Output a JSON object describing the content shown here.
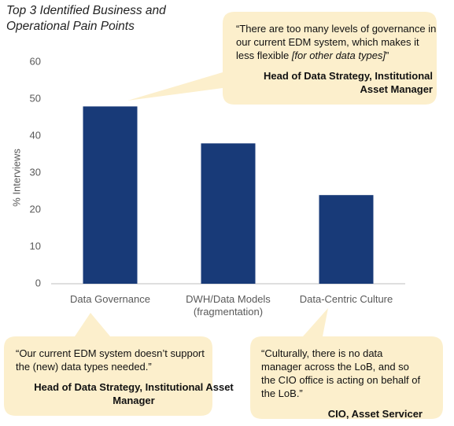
{
  "chart_data": {
    "type": "bar",
    "title": "Top 3 Identified Business and Operational Pain Points",
    "y_label": "% Interviews",
    "categories": [
      "Data Governance",
      "DWH/Data Models (fragmentation)",
      "Data-Centric Culture"
    ],
    "values": [
      48,
      38,
      24
    ],
    "color": "#183a78",
    "ylim": [
      0,
      60
    ],
    "yticks": [
      0,
      10,
      20,
      30,
      40,
      50,
      60
    ],
    "grid": false,
    "callouts": [
      {
        "quote": [
          {
            "text": "“There are too many levels of governance in our current EDM system, which makes it less flexible ",
            "italic": false
          },
          {
            "text": "[for other data types]",
            "italic": true
          },
          {
            "text": "”",
            "italic": false
          }
        ],
        "attribution": "Head of Data Strategy, Institutional Asset Manager"
      },
      {
        "quote": [
          {
            "text": "“Our current EDM system doesn’t support the (new) data types needed.”",
            "italic": false
          }
        ],
        "attribution": "Head of Data Strategy, Institutional Asset Manager"
      },
      {
        "quote": [
          {
            "text": "“Culturally, there is no data manager across the LoB, and so the CIO office is acting on behalf of the LoB.”",
            "italic": false
          }
        ],
        "attribution": "CIO, Asset Servicer"
      }
    ]
  }
}
